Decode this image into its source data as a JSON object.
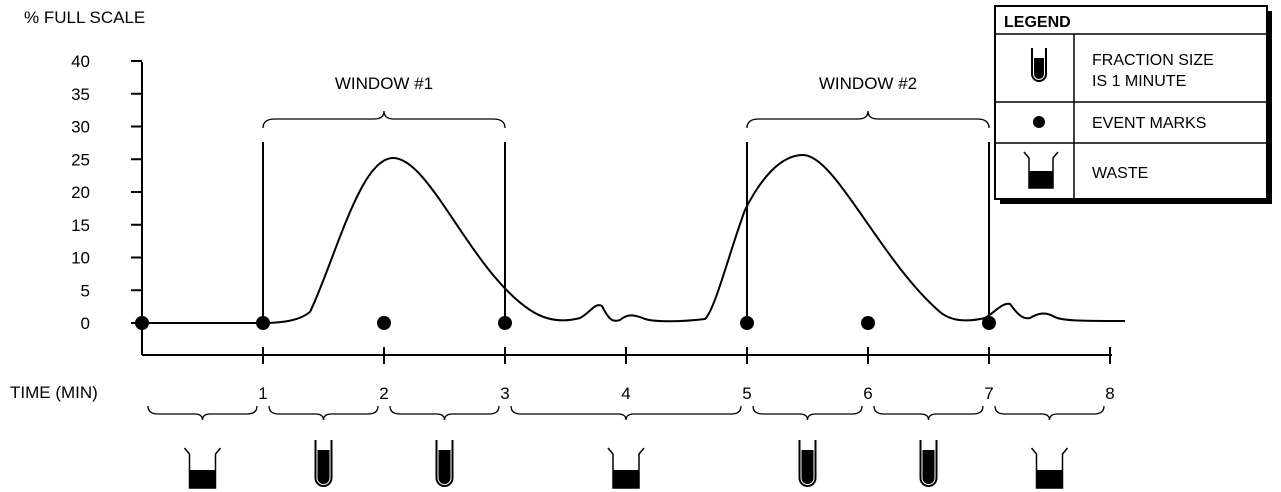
{
  "y_axis": {
    "label": "% FULL SCALE",
    "ticks": [
      "40",
      "35",
      "30",
      "25",
      "20",
      "15",
      "10",
      "5",
      "0"
    ]
  },
  "x_axis": {
    "label": "TIME (MIN)",
    "ticks": [
      "1",
      "2",
      "3",
      "4",
      "5",
      "6",
      "7",
      "8"
    ]
  },
  "windows": [
    {
      "label": "WINDOW #1",
      "start_min": 1,
      "end_min": 3
    },
    {
      "label": "WINDOW #2",
      "start_min": 5,
      "end_min": 7
    }
  ],
  "event_marks_min": [
    0,
    1,
    2,
    3,
    5,
    6,
    7
  ],
  "collection": [
    {
      "from_min": 0,
      "to_min": 1,
      "type": "waste"
    },
    {
      "from_min": 1,
      "to_min": 2,
      "type": "fraction"
    },
    {
      "from_min": 2,
      "to_min": 3,
      "type": "fraction"
    },
    {
      "from_min": 3,
      "to_min": 5,
      "type": "waste"
    },
    {
      "from_min": 5,
      "to_min": 6,
      "type": "fraction"
    },
    {
      "from_min": 6,
      "to_min": 7,
      "type": "fraction"
    },
    {
      "from_min": 7,
      "to_min": 8,
      "type": "waste"
    }
  ],
  "legend": {
    "title": "LEGEND",
    "fraction_line1": "FRACTION SIZE",
    "fraction_line2": "IS 1 MINUTE",
    "event_marks": "EVENT MARKS",
    "waste": "WASTE"
  }
}
